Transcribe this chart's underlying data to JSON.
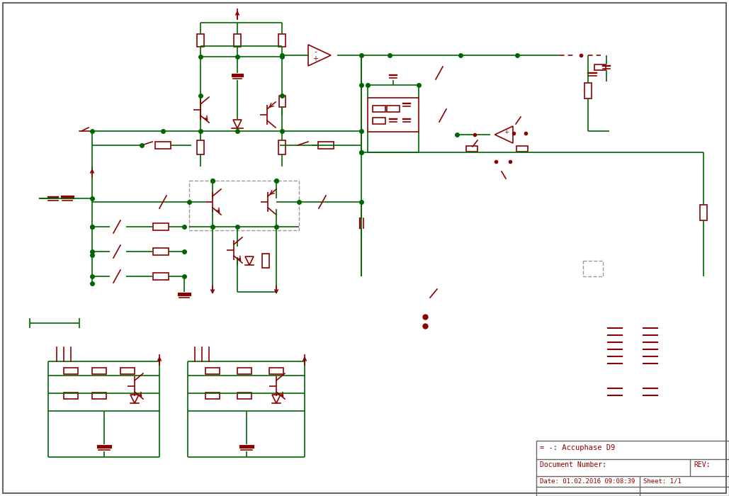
{
  "bg_color": "#ffffff",
  "wire_color": "#006600",
  "component_color": "#8B0000",
  "dashed_color": "#999999",
  "border_color": "#666666",
  "title": "= -: Accuphase D9",
  "doc_num": "Document Number:",
  "rev": "REV:",
  "date": "Date: 01.02.2016 09:08:39",
  "sheet": "Sheet: 1/1"
}
